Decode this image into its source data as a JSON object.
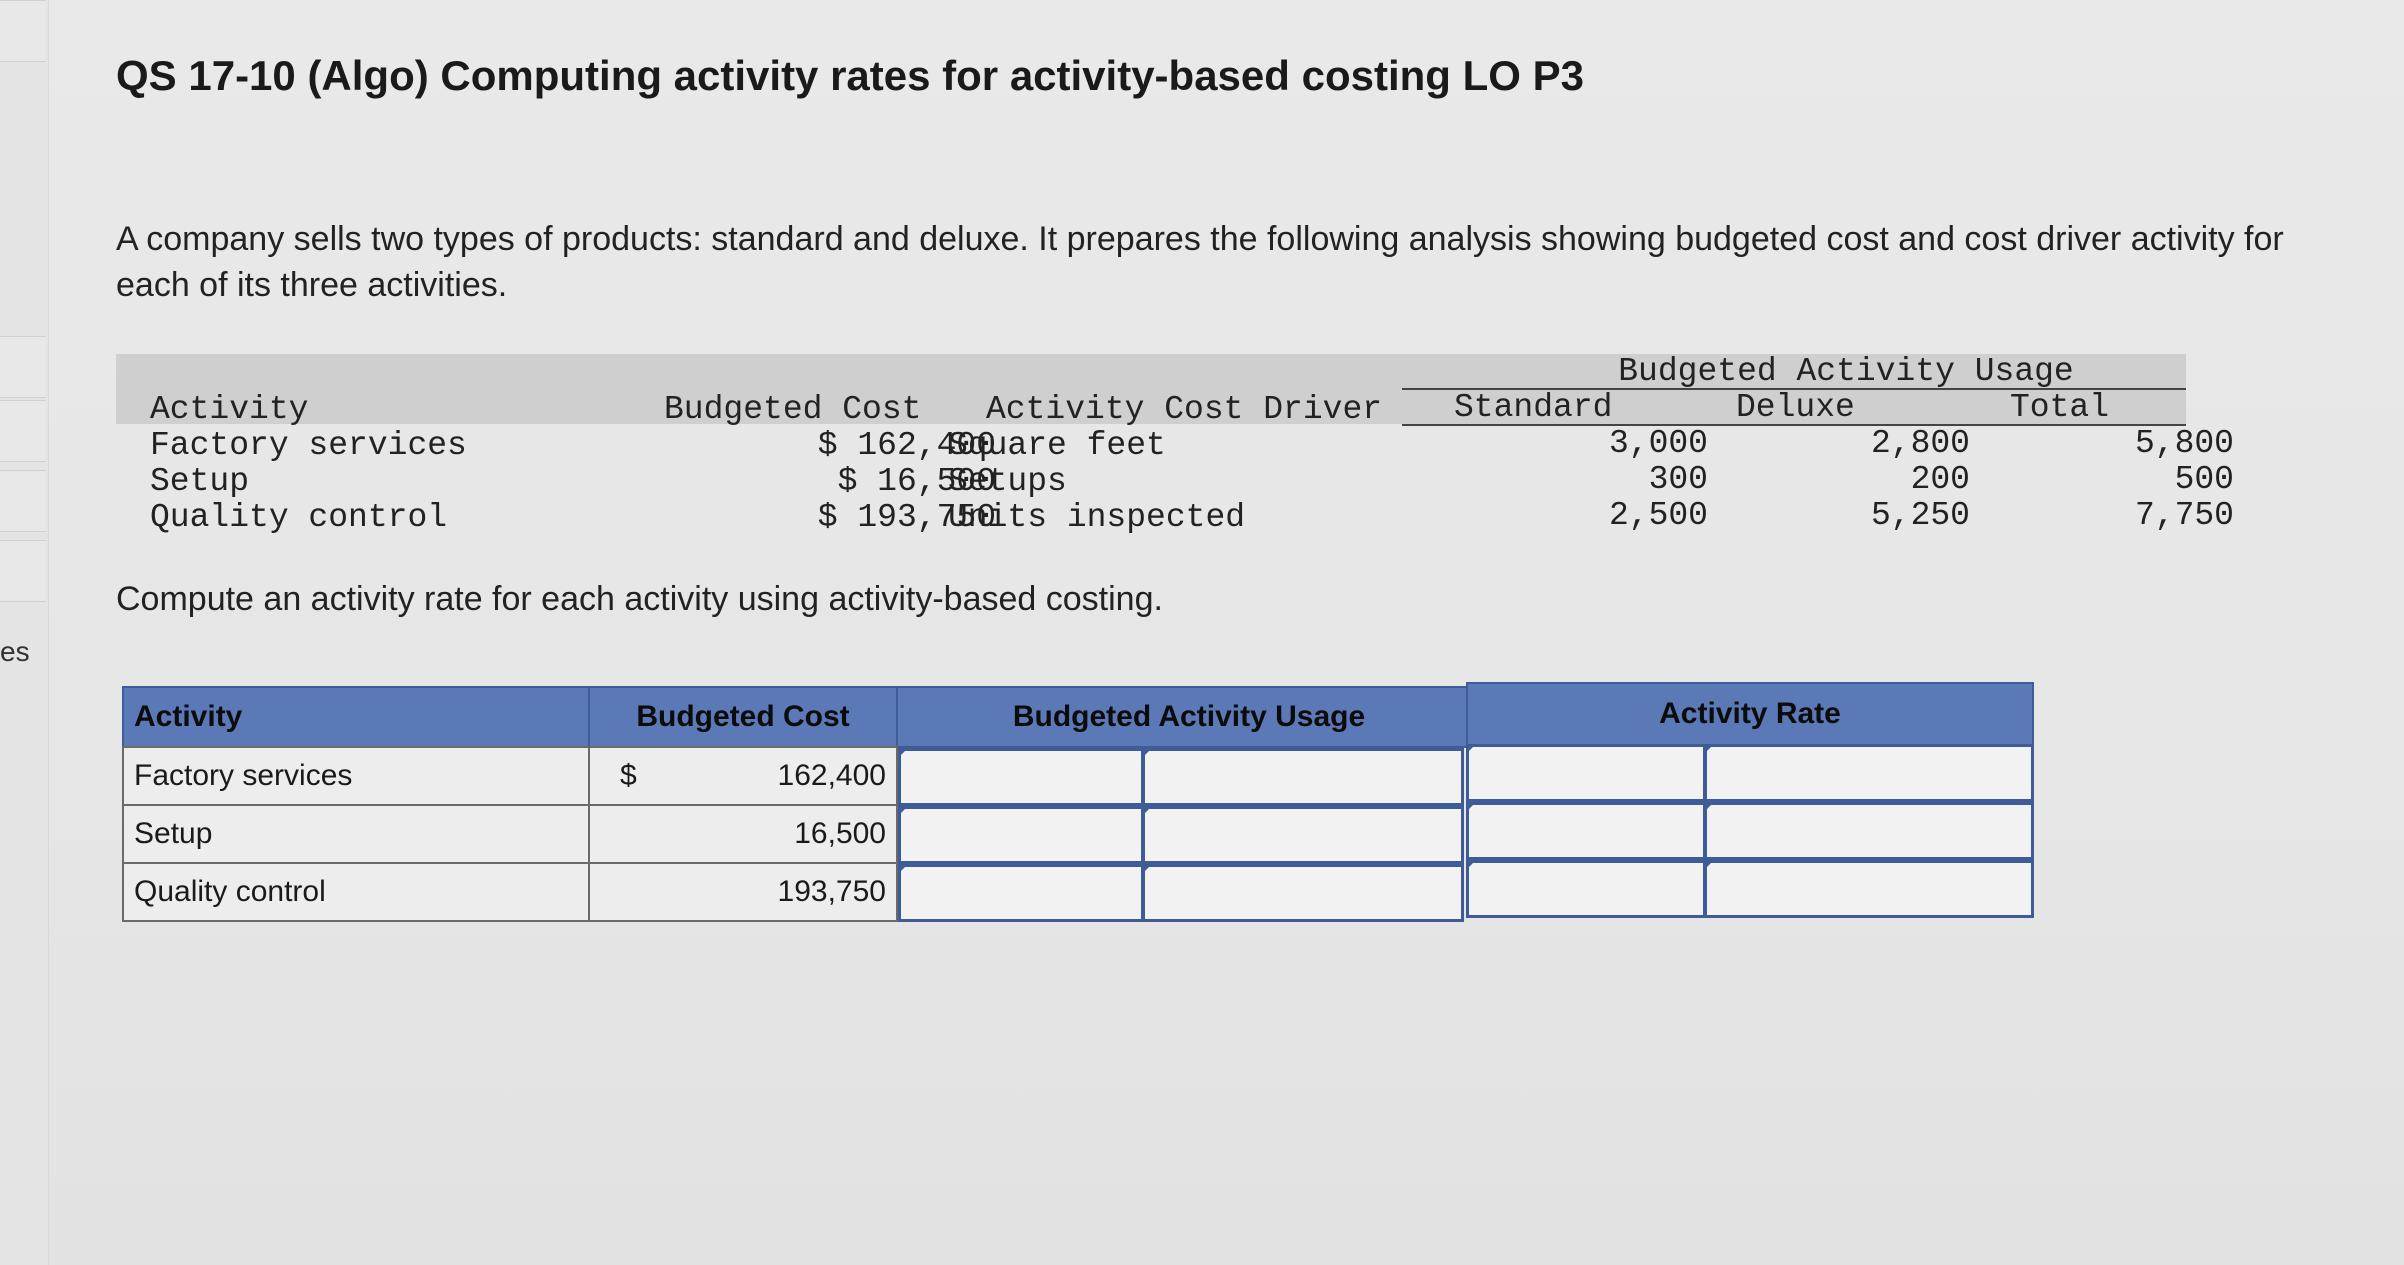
{
  "sidebar": {
    "partial_label": "es"
  },
  "title": "QS 17-10 (Algo) Computing activity rates for activity-based costing LO P3",
  "intro": "A company sells two types of products: standard and deluxe. It prepares the following analysis showing budgeted cost and cost driver activity for each of its three activities.",
  "given_table": {
    "group_header": "Budgeted Activity Usage",
    "headers": {
      "activity": "Activity",
      "cost": "Budgeted Cost",
      "driver": "Activity Cost Driver",
      "standard": "Standard",
      "deluxe": "Deluxe",
      "total": "Total"
    },
    "rows": [
      {
        "activity": "Factory services",
        "cost": "$ 162,400",
        "driver": "Square feet",
        "standard": "3,000",
        "deluxe": "2,800",
        "total": "5,800"
      },
      {
        "activity": "Setup",
        "cost": "$ 16,500",
        "driver": "Setups",
        "standard": "300",
        "deluxe": "200",
        "total": "500"
      },
      {
        "activity": "Quality control",
        "cost": "$ 193,750",
        "driver": "Units inspected",
        "standard": "2,500",
        "deluxe": "5,250",
        "total": "7,750"
      }
    ]
  },
  "instruction": "Compute an activity rate for each activity using activity-based costing.",
  "answer_table": {
    "headers": {
      "activity": "Activity",
      "cost": "Budgeted Cost",
      "usage": "Budgeted Activity Usage",
      "rate": "Activity Rate"
    },
    "currency_symbol": "$",
    "rows": [
      {
        "activity": "Factory services",
        "cost": "162,400",
        "usage_value": "",
        "usage_unit": "",
        "rate_value": "",
        "rate_unit": ""
      },
      {
        "activity": "Setup",
        "cost": "16,500",
        "usage_value": "",
        "usage_unit": "",
        "rate_value": "",
        "rate_unit": ""
      },
      {
        "activity": "Quality control",
        "cost": "193,750",
        "usage_value": "",
        "usage_unit": "",
        "rate_value": "",
        "rate_unit": ""
      }
    ]
  },
  "colors": {
    "header_blue": "#5b79b7",
    "input_border": "#3e5c97",
    "band_gray": "#cfcfcf"
  }
}
